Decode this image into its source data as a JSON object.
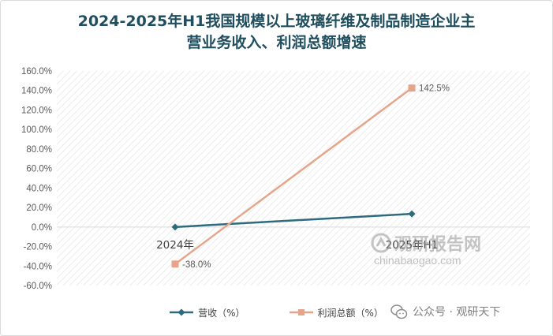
{
  "title": {
    "line1": "2024-2025年H1我国规模以上玻璃纤维及制品制造企业主",
    "line2": "营业务收入、利润总额增速"
  },
  "chart_data": {
    "type": "line",
    "categories": [
      "2024年",
      "2025年H1"
    ],
    "series": [
      {
        "name": "营收（%）",
        "values": [
          0.0,
          13.5
        ],
        "color": "#2e6b7e",
        "marker": "diamond",
        "labels": [
          "",
          ""
        ]
      },
      {
        "name": "利润总额（%）",
        "values": [
          -38.0,
          142.5
        ],
        "color": "#e6a58a",
        "marker": "square",
        "labels": [
          "-38.0%",
          "142.5%"
        ]
      }
    ],
    "ylim": [
      -60,
      160
    ],
    "yticks": [
      "160.0%",
      "140.0%",
      "120.0%",
      "100.0%",
      "80.0%",
      "60.0%",
      "40.0%",
      "20.0%",
      "0.0%",
      "-20.0%",
      "-40.0%",
      "-60.0%"
    ],
    "ytick_values": [
      160,
      140,
      120,
      100,
      80,
      60,
      40,
      20,
      0,
      -20,
      -40,
      -60
    ],
    "grid": false,
    "legend": "bottom"
  },
  "watermark": {
    "logo_text": "观研报告网",
    "url": "chinabaogao.com"
  },
  "source_badge": "公众号 · 观研天下"
}
